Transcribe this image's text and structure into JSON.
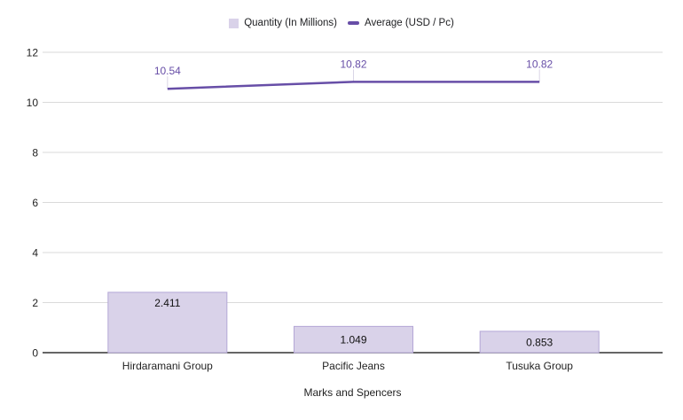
{
  "chart_data": {
    "type": "bar",
    "subtype": "combo-bar-line",
    "categories": [
      "Hirdaramani Group",
      "Pacific Jeans",
      "Tusuka Group"
    ],
    "series": [
      {
        "name": "Quantity (In Millions)",
        "type": "bar",
        "values": [
          2.411,
          1.049,
          0.853
        ],
        "labels": [
          "2.411",
          "1.049",
          "0.853"
        ],
        "fill": "#d9d2e9",
        "border": "#b4a7d6",
        "label_color": "#111111"
      },
      {
        "name": "Average (USD / Pc)",
        "type": "line",
        "values": [
          10.54,
          10.82,
          10.82
        ],
        "labels": [
          "10.54",
          "10.82",
          "10.82"
        ],
        "color": "#674ea7"
      }
    ],
    "xlabel": "Marks and Spencers",
    "ylabel": "",
    "ylim": [
      0,
      12
    ],
    "yticks": [
      0,
      2,
      4,
      6,
      8,
      10,
      12
    ],
    "grid": true,
    "legend_position": "top",
    "colors": {
      "background": "#ffffff",
      "gridline": "#dadada",
      "axis_line": "#333333",
      "tick_label": "#222222",
      "leader_tick": "#d9d5e6"
    }
  }
}
